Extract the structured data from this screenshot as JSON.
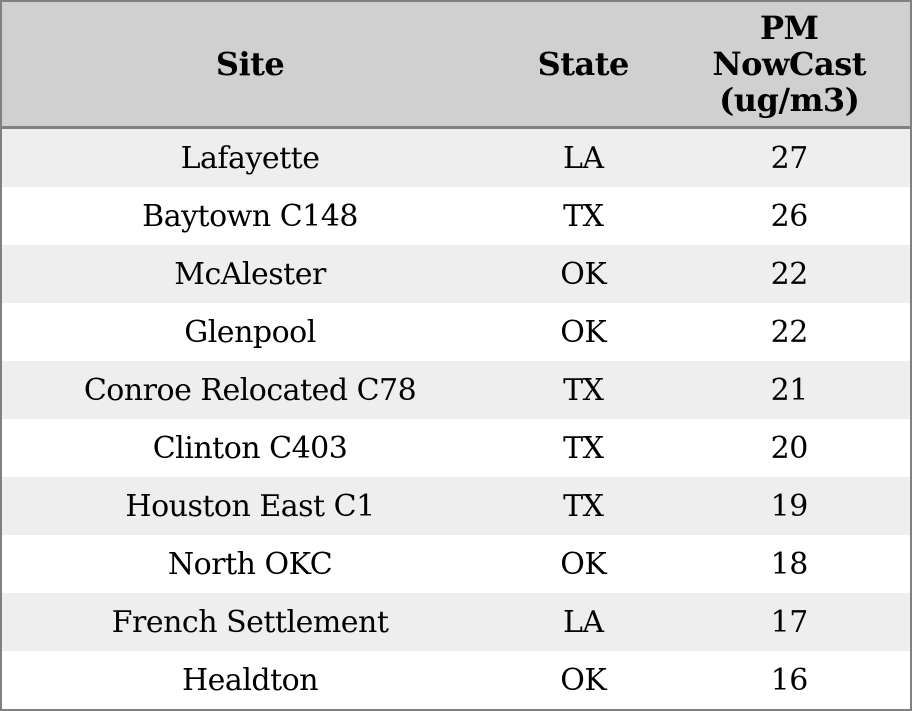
{
  "chart_data": {
    "type": "table",
    "columns": [
      "Site",
      "State",
      "PM\nNowCast\n(ug/m3)"
    ],
    "rows": [
      [
        "Lafayette",
        "LA",
        27
      ],
      [
        "Baytown C148",
        "TX",
        26
      ],
      [
        "McAlester",
        "OK",
        22
      ],
      [
        "Glenpool",
        "OK",
        22
      ],
      [
        "Conroe Relocated C78",
        "TX",
        21
      ],
      [
        "Clinton C403",
        "TX",
        20
      ],
      [
        "Houston East C1",
        "TX",
        19
      ],
      [
        "North OKC",
        "OK",
        18
      ],
      [
        "French Settlement",
        "LA",
        17
      ],
      [
        "Healdton",
        "OK",
        16
      ]
    ],
    "layout": {
      "striped": true,
      "stripe_starts_on_first_row": true,
      "header_position": "top",
      "text_align": "center"
    }
  },
  "style": {
    "header_bg": "#d0d0d0",
    "stripe_bg": "#eeeeee",
    "row_bg": "#ffffff",
    "border_color": "#808080",
    "text_color": "#000000"
  }
}
